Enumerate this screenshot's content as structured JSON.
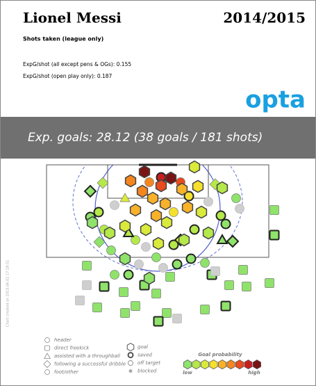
{
  "chart_data": {
    "type": "shotmap",
    "player": "Lionel Messi",
    "season": "2014/2015",
    "subtitle": "Shots taken (league only)",
    "stats": [
      "ExpG/shot (all except pens & OGs): 0.155",
      "ExpG/shot (open play only): 0.187"
    ],
    "logo": "opta",
    "banner": "Exp. goals: 28.12  (38 goals / 181 shots)",
    "footnote": "Chart created on 2015.06.02 17:28:51",
    "xlim": [
      0,
      75
    ],
    "ylim": [
      0,
      48
    ],
    "prob_colors": [
      "#8fe36a",
      "#b5e84a",
      "#d9ea3a",
      "#f5e02c",
      "#f8b22a",
      "#f5851f",
      "#ea4a1e",
      "#c81e1e",
      "#7a1414"
    ],
    "legend": {
      "types": [
        "header",
        "direct freekick",
        "assisted with a throughball",
        "following a successful dribble",
        "foot/other"
      ],
      "results": [
        "goal",
        "saved",
        "off target",
        "blocked"
      ],
      "prob_title": "Goal probability",
      "low": "low",
      "high": "high"
    },
    "shots": [
      {
        "x": 33.6,
        "y": 2,
        "xg": 0.95,
        "type": "foot",
        "result": "goal"
      },
      {
        "x": 41.2,
        "y": 3.8,
        "xg": 0.9,
        "type": "foot",
        "result": "goal"
      },
      {
        "x": 48,
        "y": 0.6,
        "xg": 0.3,
        "type": "foot",
        "result": "goal"
      },
      {
        "x": 29.6,
        "y": 4.6,
        "xg": 0.6,
        "type": "throughball",
        "result": "goal"
      },
      {
        "x": 38.4,
        "y": 6,
        "xg": 0.75,
        "type": "foot",
        "result": "goal"
      },
      {
        "x": 33,
        "y": 7.6,
        "xg": 0.6,
        "type": "foot",
        "result": "goal"
      },
      {
        "x": 44.4,
        "y": 7,
        "xg": 0.55,
        "type": "foot",
        "result": "goal"
      },
      {
        "x": 49,
        "y": 6.2,
        "xg": 0.35,
        "type": "foot",
        "result": "goal"
      },
      {
        "x": 36,
        "y": 9.6,
        "xg": 0.5,
        "type": "foot",
        "result": "goal"
      },
      {
        "x": 39.6,
        "y": 11.2,
        "xg": 0.45,
        "type": "foot",
        "result": "goal"
      },
      {
        "x": 46,
        "y": 12.2,
        "xg": 0.45,
        "type": "foot",
        "result": "goal"
      },
      {
        "x": 31,
        "y": 13,
        "xg": 0.5,
        "type": "foot",
        "result": "goal"
      },
      {
        "x": 37,
        "y": 14.6,
        "xg": 0.55,
        "type": "foot",
        "result": "goal"
      },
      {
        "x": 50,
        "y": 13.6,
        "xg": 0.3,
        "type": "foot",
        "result": "goal"
      },
      {
        "x": 40,
        "y": 16.6,
        "xg": 0.3,
        "type": "foot",
        "result": "goal"
      },
      {
        "x": 34,
        "y": 18.6,
        "xg": 0.25,
        "type": "foot",
        "result": "goal"
      },
      {
        "x": 28,
        "y": 17.6,
        "xg": 0.28,
        "type": "throughball",
        "result": "goal"
      },
      {
        "x": 23.6,
        "y": 19.6,
        "xg": 0.18,
        "type": "foot",
        "result": "goal"
      },
      {
        "x": 45,
        "y": 21.6,
        "xg": 0.15,
        "type": "foot",
        "result": "goal"
      },
      {
        "x": 56,
        "y": 6.6,
        "xg": 0.2,
        "type": "foot",
        "result": "goal"
      },
      {
        "x": 18.6,
        "y": 16.6,
        "xg": 0.1,
        "type": "foot",
        "result": "goal"
      },
      {
        "x": 35,
        "y": 32.6,
        "xg": 0.05,
        "type": "foot",
        "result": "goal"
      },
      {
        "x": 28,
        "y": 27,
        "xg": 0.06,
        "type": "foot",
        "result": "goal"
      },
      {
        "x": 37.6,
        "y": 22.6,
        "xg": 0.25,
        "type": "foot",
        "result": "goal"
      },
      {
        "x": 52,
        "y": 19.6,
        "xg": 0.12,
        "type": "foot",
        "result": "goal"
      },
      {
        "x": 38.4,
        "y": 3.6,
        "xg": 0.8,
        "type": "foot",
        "result": "saved"
      },
      {
        "x": 44,
        "y": 5,
        "xg": 0.75,
        "type": "foot",
        "result": "off"
      },
      {
        "x": 35,
        "y": 5,
        "xg": 0.65,
        "type": "foot",
        "result": "off"
      },
      {
        "x": 21.6,
        "y": 5.2,
        "xg": 0.15,
        "type": "dribble",
        "result": "off"
      },
      {
        "x": 18,
        "y": 7.6,
        "xg": 0.1,
        "type": "dribble",
        "result": "saved"
      },
      {
        "x": 54,
        "y": 5.6,
        "xg": 0.12,
        "type": "dribble",
        "result": "off"
      },
      {
        "x": 20.4,
        "y": 13.6,
        "xg": 0.15,
        "type": "foot",
        "result": "saved"
      },
      {
        "x": 25,
        "y": 11.6,
        "xg": 0.2,
        "type": "foot",
        "result": "blocked"
      },
      {
        "x": 18,
        "y": 15,
        "xg": 0.1,
        "type": "foot",
        "result": "saved"
      },
      {
        "x": 22,
        "y": 18.6,
        "xg": 0.12,
        "type": "foot",
        "result": "off"
      },
      {
        "x": 55.6,
        "y": 14.6,
        "xg": 0.12,
        "type": "foot",
        "result": "saved"
      },
      {
        "x": 57,
        "y": 17,
        "xg": 0.1,
        "type": "foot",
        "result": "saved"
      },
      {
        "x": 52,
        "y": 10.6,
        "xg": 0.2,
        "type": "foot",
        "result": "blocked"
      },
      {
        "x": 61,
        "y": 12.6,
        "xg": 0.05,
        "type": "foot",
        "result": "blocked"
      },
      {
        "x": 60,
        "y": 9.6,
        "xg": 0.08,
        "type": "foot",
        "result": "off"
      },
      {
        "x": 31,
        "y": 21.6,
        "xg": 0.12,
        "type": "foot",
        "result": "off"
      },
      {
        "x": 42,
        "y": 23,
        "xg": 0.15,
        "type": "foot",
        "result": "saved"
      },
      {
        "x": 59,
        "y": 22,
        "xg": 0.1,
        "type": "dribble",
        "result": "saved"
      },
      {
        "x": 44,
        "y": 21.6,
        "xg": 0.3,
        "type": "dribble",
        "result": "saved"
      },
      {
        "x": 37,
        "y": 26.6,
        "xg": 0.1,
        "type": "foot",
        "result": "off"
      },
      {
        "x": 29,
        "y": 31.6,
        "xg": 0.06,
        "type": "foot",
        "result": "saved"
      },
      {
        "x": 25,
        "y": 31.6,
        "xg": 0.05,
        "type": "foot",
        "result": "off"
      },
      {
        "x": 43,
        "y": 28.6,
        "xg": 0.07,
        "type": "foot",
        "result": "saved"
      },
      {
        "x": 47,
        "y": 27,
        "xg": 0.08,
        "type": "foot",
        "result": "saved"
      },
      {
        "x": 51,
        "y": 28.2,
        "xg": 0.07,
        "type": "foot",
        "result": "off"
      },
      {
        "x": 39,
        "y": 29.6,
        "xg": 0.05,
        "type": "foot",
        "result": "blocked"
      },
      {
        "x": 32,
        "y": 28.6,
        "xg": 0.05,
        "type": "foot",
        "result": "blocked"
      },
      {
        "x": 17,
        "y": 29,
        "xg": 0.04,
        "type": "freekick",
        "result": "off"
      },
      {
        "x": 22,
        "y": 35,
        "xg": 0.04,
        "type": "freekick",
        "result": "saved"
      },
      {
        "x": 27.6,
        "y": 36.6,
        "xg": 0.04,
        "type": "freekick",
        "result": "off"
      },
      {
        "x": 33.6,
        "y": 34.6,
        "xg": 0.05,
        "type": "freekick",
        "result": "saved"
      },
      {
        "x": 37,
        "y": 37,
        "xg": 0.04,
        "type": "freekick",
        "result": "off"
      },
      {
        "x": 41,
        "y": 32.2,
        "xg": 0.05,
        "type": "freekick",
        "result": "off"
      },
      {
        "x": 53,
        "y": 31.6,
        "xg": 0.05,
        "type": "freekick",
        "result": "saved"
      },
      {
        "x": 62,
        "y": 30.2,
        "xg": 0.04,
        "type": "freekick",
        "result": "off"
      },
      {
        "x": 58,
        "y": 34.6,
        "xg": 0.04,
        "type": "freekick",
        "result": "off"
      },
      {
        "x": 63,
        "y": 35,
        "xg": 0.04,
        "type": "freekick",
        "result": "off"
      },
      {
        "x": 57,
        "y": 40.6,
        "xg": 0.03,
        "type": "freekick",
        "result": "saved"
      },
      {
        "x": 51,
        "y": 41.6,
        "xg": 0.03,
        "type": "freekick",
        "result": "off"
      },
      {
        "x": 40,
        "y": 42.6,
        "xg": 0.03,
        "type": "freekick",
        "result": "off"
      },
      {
        "x": 31,
        "y": 40.6,
        "xg": 0.03,
        "type": "freekick",
        "result": "off"
      },
      {
        "x": 28,
        "y": 42.6,
        "xg": 0.03,
        "type": "freekick",
        "result": "off"
      },
      {
        "x": 15,
        "y": 39,
        "xg": 0.03,
        "type": "freekick",
        "result": "blocked"
      },
      {
        "x": 17,
        "y": 34.6,
        "xg": 0.03,
        "type": "freekick",
        "result": "blocked"
      },
      {
        "x": 20,
        "y": 41,
        "xg": 0.03,
        "type": "freekick",
        "result": "off"
      },
      {
        "x": 43,
        "y": 44.2,
        "xg": 0.02,
        "type": "freekick",
        "result": "blocked"
      },
      {
        "x": 37.6,
        "y": 45,
        "xg": 0.02,
        "type": "freekick",
        "result": "saved"
      },
      {
        "x": 71,
        "y": 13,
        "xg": 0.03,
        "type": "freekick",
        "result": "off"
      },
      {
        "x": 71,
        "y": 20.2,
        "xg": 0.03,
        "type": "freekick",
        "result": "saved"
      },
      {
        "x": 69.6,
        "y": 34,
        "xg": 0.03,
        "type": "freekick",
        "result": "off"
      },
      {
        "x": 24,
        "y": 24.6,
        "xg": 0.08,
        "type": "foot",
        "result": "off"
      },
      {
        "x": 20.6,
        "y": 22.2,
        "xg": 0.09,
        "type": "dribble",
        "result": "off"
      },
      {
        "x": 56,
        "y": 21.6,
        "xg": 0.1,
        "type": "throughball",
        "result": "saved"
      },
      {
        "x": 48,
        "y": 18.6,
        "xg": 0.15,
        "type": "foot",
        "result": "saved"
      },
      {
        "x": 34,
        "y": 23.6,
        "xg": 0.12,
        "type": "foot",
        "result": "blocked"
      },
      {
        "x": 46.4,
        "y": 9,
        "xg": 0.35,
        "type": "foot",
        "result": "saved"
      },
      {
        "x": 42,
        "y": 13.6,
        "xg": 0.4,
        "type": "foot",
        "result": "off"
      },
      {
        "x": 28,
        "y": 9.6,
        "xg": 0.3,
        "type": "throughball",
        "result": "off"
      },
      {
        "x": 29,
        "y": 19.6,
        "xg": 0.2,
        "type": "throughball",
        "result": "saved"
      },
      {
        "x": 54,
        "y": 30.6,
        "xg": 0.05,
        "type": "freekick",
        "result": "blocked"
      }
    ]
  }
}
